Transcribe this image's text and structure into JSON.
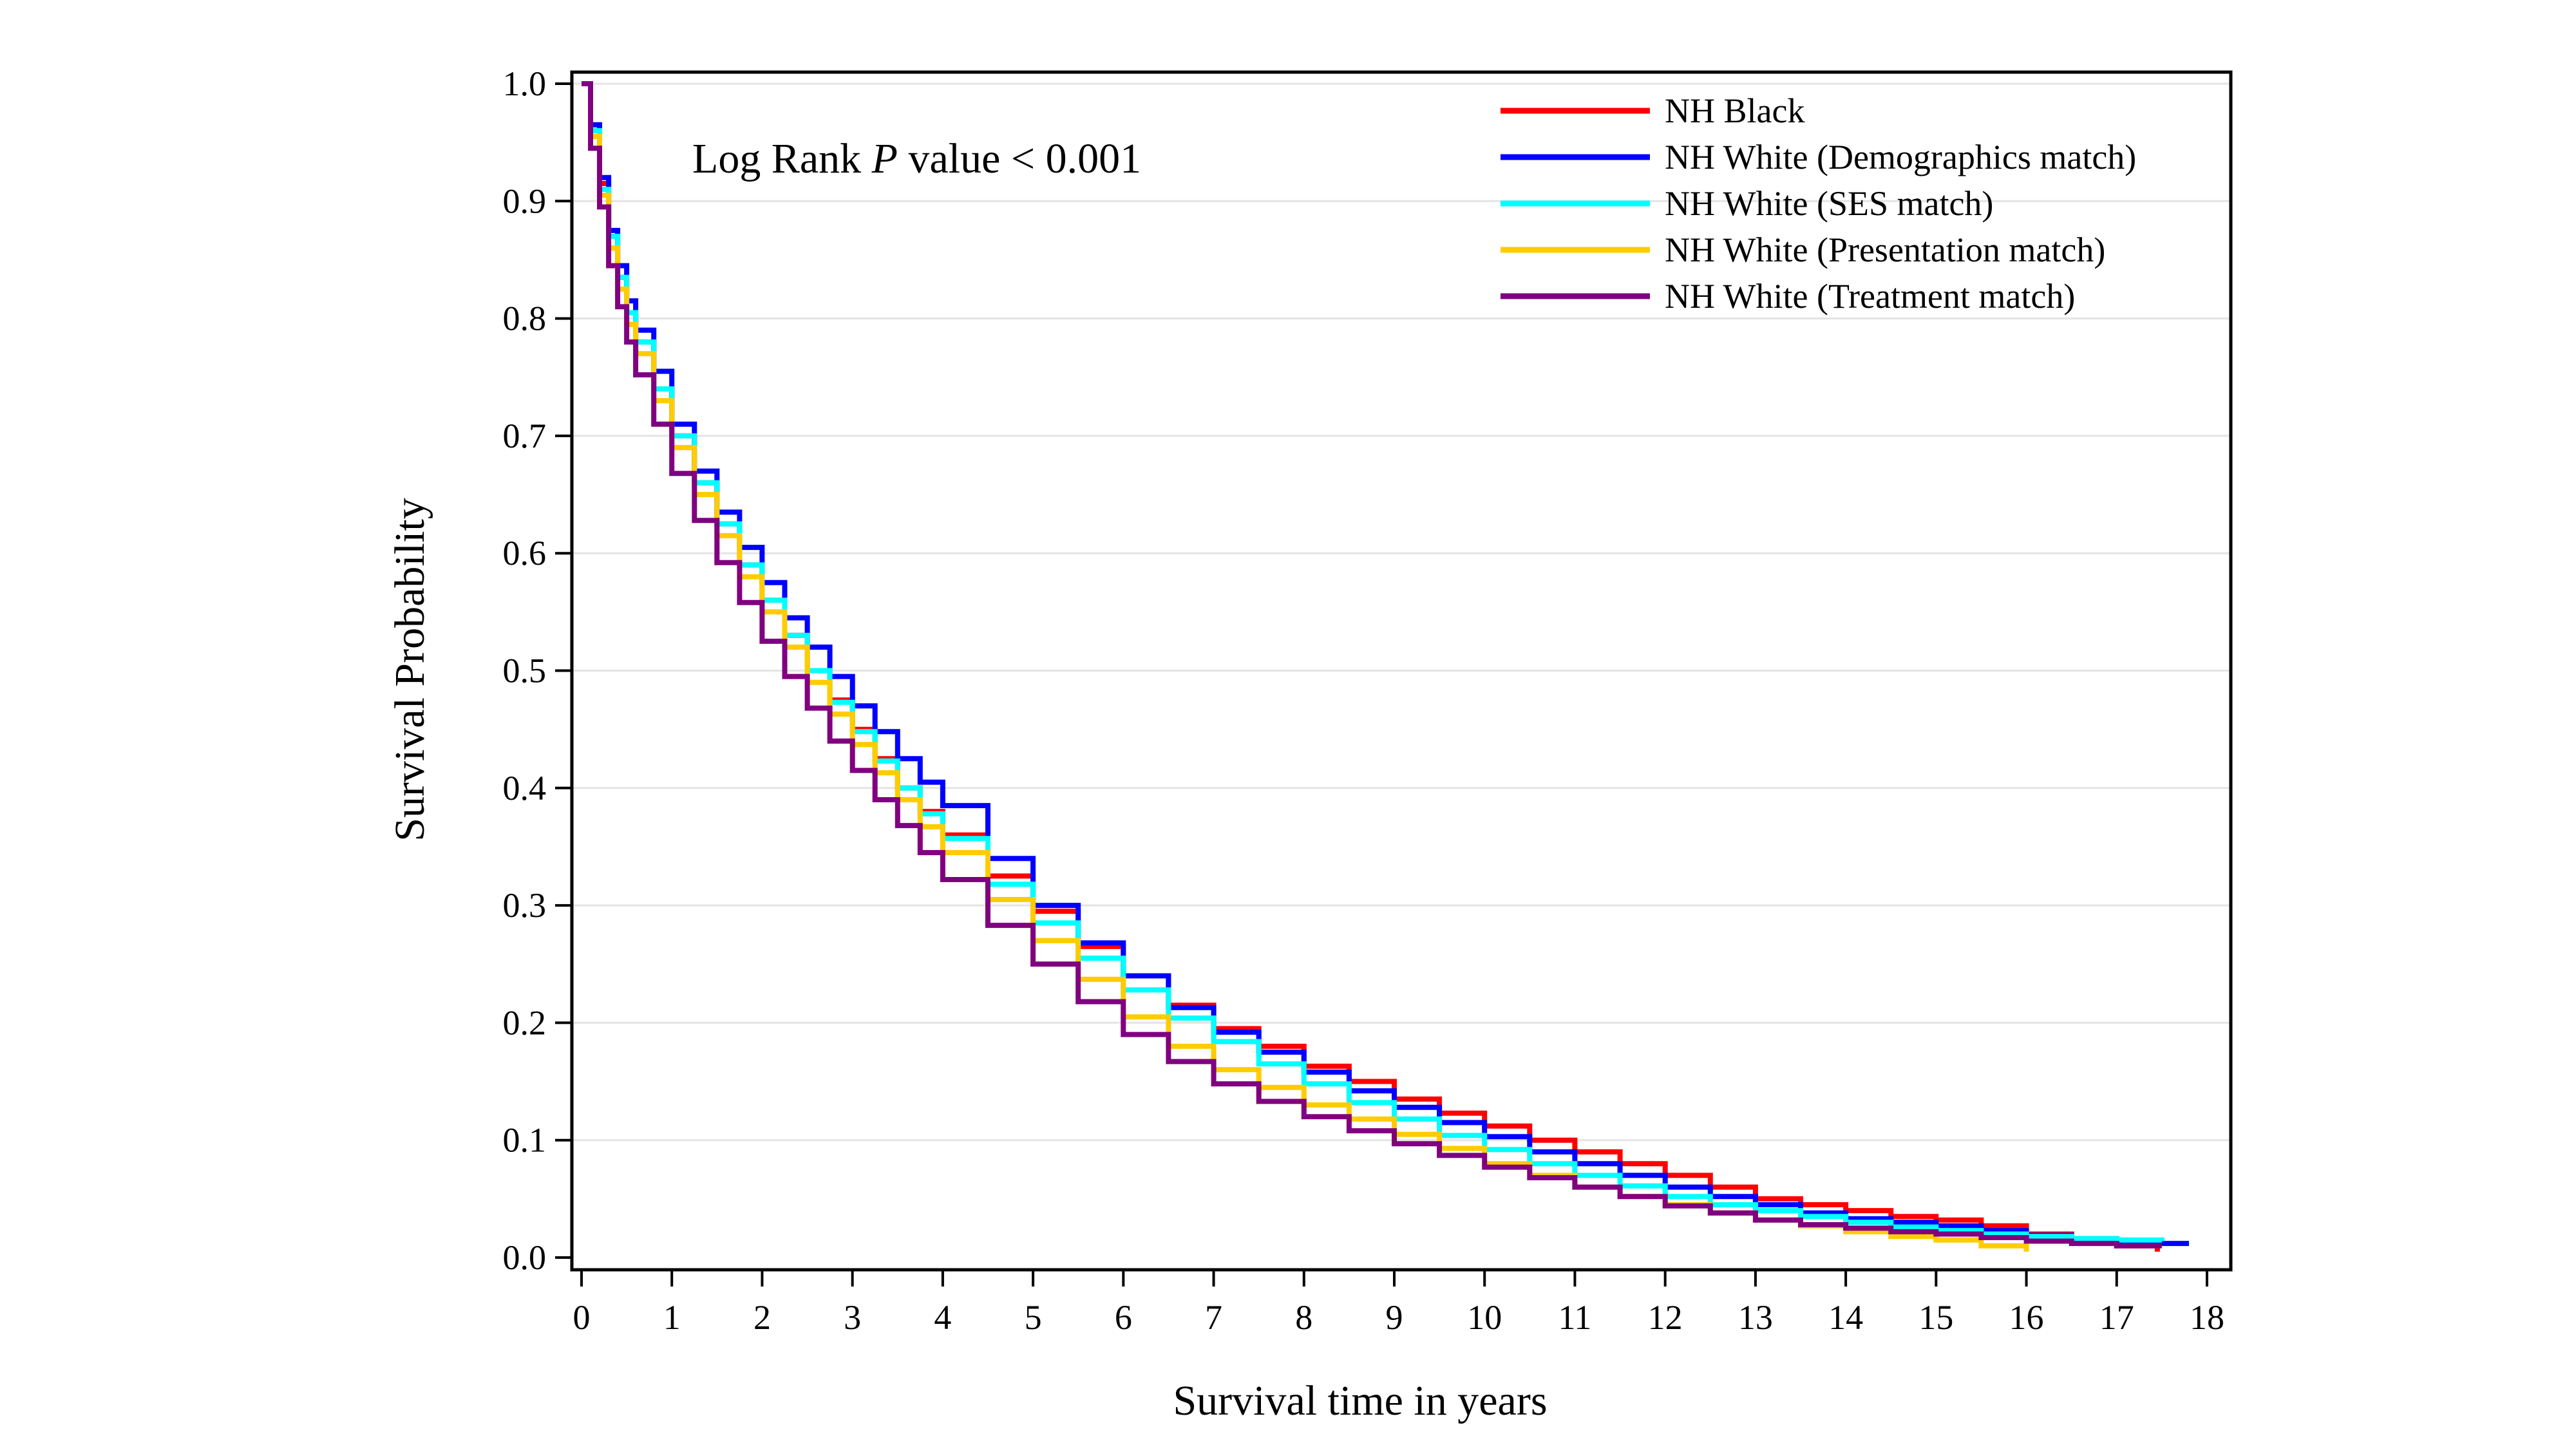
{
  "chart_data": {
    "type": "line",
    "step": true,
    "xlabel": "Survival time in years",
    "ylabel": "Survival Probability",
    "xlim": [
      0,
      18
    ],
    "ylim": [
      0,
      1.0
    ],
    "xticks": [
      "0",
      "1",
      "2",
      "3",
      "4",
      "5",
      "6",
      "7",
      "8",
      "9",
      "10",
      "11",
      "12",
      "13",
      "14",
      "15",
      "16",
      "17",
      "18"
    ],
    "yticks": [
      "0.0",
      "0.1",
      "0.2",
      "0.3",
      "0.4",
      "0.5",
      "0.6",
      "0.7",
      "0.8",
      "0.9",
      "1.0"
    ],
    "grid": "horizontal",
    "legend_position": "top-right",
    "annotation": {
      "prefix": "Log Rank ",
      "italic": "P",
      "suffix": " value < 0.001"
    },
    "series": [
      {
        "name": "NH Black",
        "color": "#ff0000",
        "x": [
          0,
          0.1,
          0.2,
          0.3,
          0.4,
          0.5,
          0.6,
          0.8,
          1,
          1.25,
          1.5,
          1.75,
          2,
          2.25,
          2.5,
          2.75,
          3,
          3.25,
          3.5,
          3.75,
          4,
          4.5,
          5,
          5.5,
          6,
          6.5,
          7,
          7.5,
          8,
          8.5,
          9,
          9.5,
          10,
          10.5,
          11,
          11.5,
          12,
          12.5,
          13,
          13.5,
          14,
          14.5,
          15,
          15.5,
          16,
          16.5,
          17,
          17.4,
          17.45
        ],
        "y": [
          1.0,
          0.96,
          0.915,
          0.87,
          0.835,
          0.805,
          0.78,
          0.74,
          0.7,
          0.66,
          0.625,
          0.59,
          0.56,
          0.53,
          0.5,
          0.475,
          0.45,
          0.425,
          0.4,
          0.38,
          0.36,
          0.325,
          0.295,
          0.265,
          0.24,
          0.215,
          0.195,
          0.18,
          0.163,
          0.15,
          0.135,
          0.123,
          0.112,
          0.1,
          0.09,
          0.08,
          0.07,
          0.06,
          0.05,
          0.045,
          0.04,
          0.035,
          0.032,
          0.027,
          0.02,
          0.015,
          0.01,
          0.01,
          0.005
        ]
      },
      {
        "name": "NH White (Demographics match)",
        "color": "#0000ff",
        "x": [
          0,
          0.1,
          0.2,
          0.3,
          0.4,
          0.5,
          0.6,
          0.8,
          1,
          1.25,
          1.5,
          1.75,
          2,
          2.25,
          2.5,
          2.75,
          3,
          3.25,
          3.5,
          3.75,
          4,
          4.5,
          5,
          5.5,
          6,
          6.5,
          7,
          7.5,
          8,
          8.5,
          9,
          9.5,
          10,
          10.5,
          11,
          11.5,
          12,
          12.5,
          13,
          13.5,
          14,
          14.5,
          15,
          15.5,
          16,
          16.5,
          17,
          17.5,
          17.8
        ],
        "y": [
          1.0,
          0.965,
          0.92,
          0.875,
          0.845,
          0.815,
          0.79,
          0.755,
          0.71,
          0.67,
          0.635,
          0.605,
          0.575,
          0.545,
          0.52,
          0.495,
          0.47,
          0.448,
          0.425,
          0.405,
          0.385,
          0.34,
          0.3,
          0.268,
          0.24,
          0.213,
          0.192,
          0.175,
          0.158,
          0.142,
          0.128,
          0.115,
          0.103,
          0.09,
          0.08,
          0.07,
          0.06,
          0.052,
          0.045,
          0.038,
          0.033,
          0.03,
          0.027,
          0.023,
          0.019,
          0.016,
          0.014,
          0.012,
          0.012
        ]
      },
      {
        "name": "NH White (SES match)",
        "color": "#00ffff",
        "x": [
          0,
          0.1,
          0.2,
          0.3,
          0.4,
          0.5,
          0.6,
          0.8,
          1,
          1.25,
          1.5,
          1.75,
          2,
          2.25,
          2.5,
          2.75,
          3,
          3.25,
          3.5,
          3.75,
          4,
          4.5,
          5,
          5.5,
          6,
          6.5,
          7,
          7.5,
          8,
          8.5,
          9,
          9.5,
          10,
          10.5,
          11,
          11.5,
          12,
          12.5,
          13,
          13.5,
          14,
          14.5,
          15,
          15.5,
          16,
          16.5,
          17,
          17.5
        ],
        "y": [
          1.0,
          0.96,
          0.91,
          0.87,
          0.835,
          0.805,
          0.78,
          0.74,
          0.7,
          0.66,
          0.625,
          0.59,
          0.56,
          0.53,
          0.5,
          0.473,
          0.448,
          0.423,
          0.4,
          0.378,
          0.357,
          0.318,
          0.285,
          0.255,
          0.228,
          0.204,
          0.184,
          0.165,
          0.148,
          0.132,
          0.118,
          0.104,
          0.092,
          0.08,
          0.07,
          0.061,
          0.052,
          0.045,
          0.04,
          0.035,
          0.03,
          0.026,
          0.023,
          0.02,
          0.018,
          0.016,
          0.015,
          0.014
        ]
      },
      {
        "name": "NH White (Presentation match)",
        "color": "#ffcc00",
        "x": [
          0,
          0.1,
          0.2,
          0.3,
          0.4,
          0.5,
          0.6,
          0.8,
          1,
          1.25,
          1.5,
          1.75,
          2,
          2.25,
          2.5,
          2.75,
          3,
          3.25,
          3.5,
          3.75,
          4,
          4.5,
          5,
          5.5,
          6,
          6.5,
          7,
          7.5,
          8,
          8.5,
          9,
          9.5,
          10,
          10.5,
          11,
          11.5,
          12,
          12.5,
          13,
          13.5,
          14,
          14.5,
          15,
          15.5,
          16
        ],
        "y": [
          1.0,
          0.955,
          0.905,
          0.86,
          0.825,
          0.795,
          0.77,
          0.73,
          0.69,
          0.65,
          0.615,
          0.58,
          0.55,
          0.52,
          0.49,
          0.463,
          0.437,
          0.413,
          0.39,
          0.367,
          0.345,
          0.305,
          0.27,
          0.237,
          0.205,
          0.18,
          0.16,
          0.145,
          0.13,
          0.118,
          0.105,
          0.093,
          0.08,
          0.07,
          0.06,
          0.052,
          0.045,
          0.038,
          0.032,
          0.027,
          0.022,
          0.018,
          0.015,
          0.01,
          0.005
        ]
      },
      {
        "name": "NH White (Treatment match)",
        "color": "#800080",
        "x": [
          0,
          0.1,
          0.2,
          0.3,
          0.4,
          0.5,
          0.6,
          0.8,
          1,
          1.25,
          1.5,
          1.75,
          2,
          2.25,
          2.5,
          2.75,
          3,
          3.25,
          3.5,
          3.75,
          4,
          4.5,
          5,
          5.5,
          6,
          6.5,
          7,
          7.5,
          8,
          8.5,
          9,
          9.5,
          10,
          10.5,
          11,
          11.5,
          12,
          12.5,
          13,
          13.5,
          14,
          14.5,
          15,
          15.5,
          16,
          16.5,
          17,
          17.5
        ],
        "y": [
          1.0,
          0.945,
          0.895,
          0.845,
          0.81,
          0.78,
          0.752,
          0.71,
          0.668,
          0.628,
          0.592,
          0.558,
          0.525,
          0.495,
          0.468,
          0.44,
          0.415,
          0.39,
          0.368,
          0.345,
          0.322,
          0.283,
          0.25,
          0.218,
          0.19,
          0.167,
          0.148,
          0.133,
          0.12,
          0.108,
          0.097,
          0.087,
          0.077,
          0.068,
          0.06,
          0.052,
          0.044,
          0.038,
          0.032,
          0.028,
          0.025,
          0.022,
          0.02,
          0.017,
          0.014,
          0.012,
          0.01,
          0.01
        ]
      }
    ]
  }
}
